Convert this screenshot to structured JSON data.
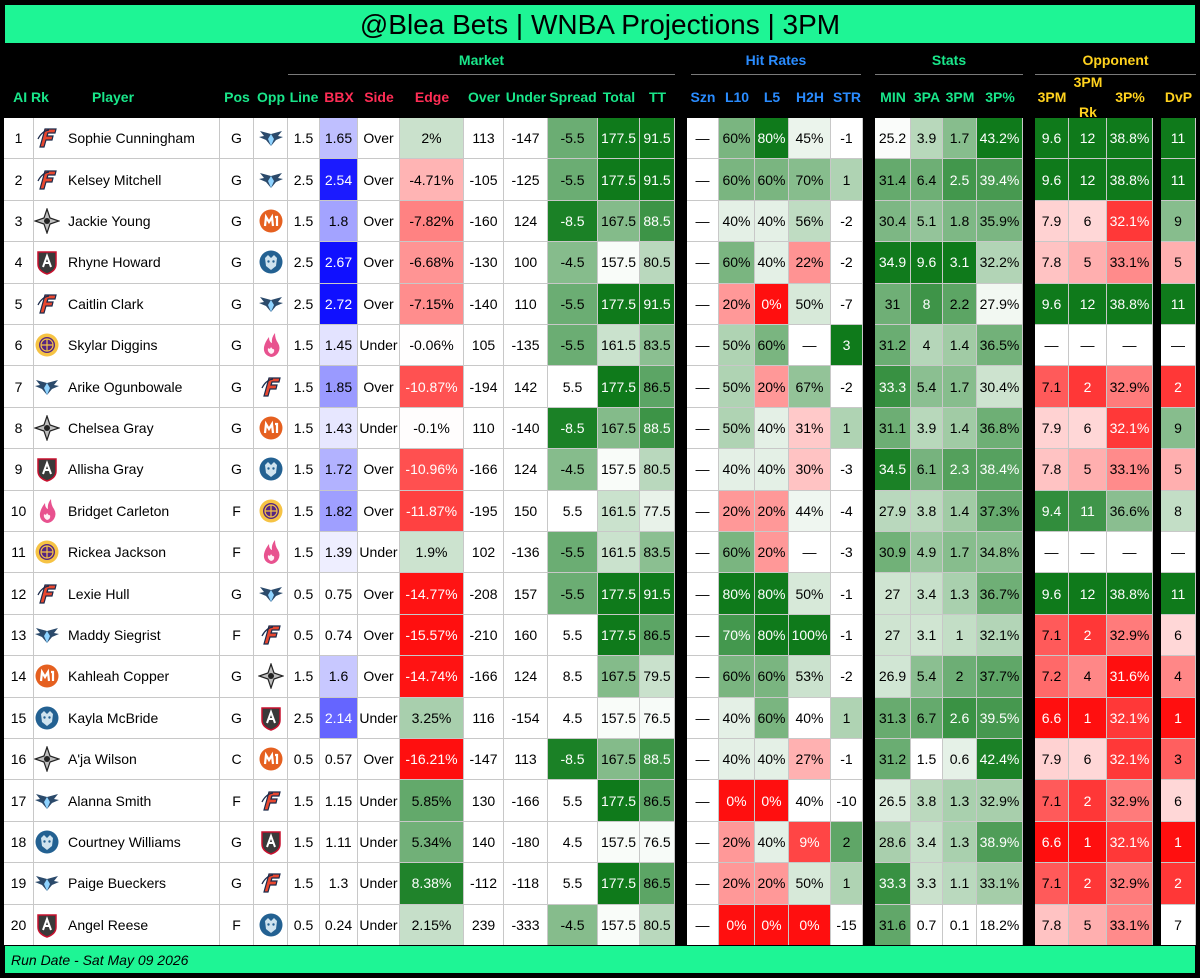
{
  "title": "@Blea Bets | WNBA Projections | 3PM",
  "footer": "Run Date - Sat May 09 2026",
  "groups": {
    "market": "Market",
    "hit_rates": "Hit Rates",
    "stats": "Stats",
    "opponent": "Opponent"
  },
  "headers": {
    "rk": "AI Rk",
    "player": "Player",
    "pos": "Pos",
    "opp": "Opp",
    "line": "Line",
    "bbx": "BBX",
    "side": "Side",
    "edge": "Edge",
    "over": "Over",
    "under": "Under",
    "spread": "Spread",
    "total": "Total",
    "tt": "TT",
    "szn": "Szn",
    "l10": "L10",
    "l5": "L5",
    "h2h": "H2H",
    "str": "STR",
    "min": "MIN",
    "3pa": "3PA",
    "3pm": "3PM",
    "3pct": "3P%",
    "o3pm": "3PM",
    "o3pmrk_top": "3PM",
    "o3pmrk_bottom": "Rk",
    "o3pct": "3P%",
    "dvp": "DvP"
  },
  "colors": {
    "fever": "#e8472f",
    "wings": "#2b4a6b",
    "aces": "#222222",
    "dream": "#c8102e",
    "valkyries": "#6f4a9e",
    "mercury": "#e56020",
    "lynx": "#236192",
    "sparks": "#552583",
    "fire": "#e8528f",
    "sky": "#418fde"
  },
  "rows": [
    {
      "rk": "1",
      "player": "Sophie Cunningham",
      "pos": "G",
      "team_icon": "fever-icon",
      "opp_icon": "wings-icon",
      "line": "1.5",
      "bbx": "1.65",
      "side": "Over",
      "edge": "2%",
      "over": "113",
      "under": "-147",
      "spread": "-5.5",
      "total": "177.5",
      "tt": "91.5",
      "szn": "—",
      "l10": "60%",
      "l5": "80%",
      "h2h": "45%",
      "str": "-1",
      "min": "25.2",
      "3pa": "3.9",
      "3pm": "1.7",
      "3pct": "43.2%",
      "o3pm": "9.6",
      "o3rk": "12",
      "o3pct": "38.8%",
      "dvp": "11"
    },
    {
      "rk": "2",
      "player": "Kelsey Mitchell",
      "pos": "G",
      "team_icon": "fever-icon",
      "opp_icon": "wings-icon",
      "line": "2.5",
      "bbx": "2.54",
      "side": "Over",
      "edge": "-4.71%",
      "over": "-105",
      "under": "-125",
      "spread": "-5.5",
      "total": "177.5",
      "tt": "91.5",
      "szn": "—",
      "l10": "60%",
      "l5": "60%",
      "h2h": "70%",
      "str": "1",
      "min": "31.4",
      "3pa": "6.4",
      "3pm": "2.5",
      "3pct": "39.4%",
      "o3pm": "9.6",
      "o3rk": "12",
      "o3pct": "38.8%",
      "dvp": "11"
    },
    {
      "rk": "3",
      "player": "Jackie Young",
      "pos": "G",
      "team_icon": "aces-icon",
      "opp_icon": "mercury-icon",
      "line": "1.5",
      "bbx": "1.8",
      "side": "Over",
      "edge": "-7.82%",
      "over": "-160",
      "under": "124",
      "spread": "-8.5",
      "total": "167.5",
      "tt": "88.5",
      "szn": "—",
      "l10": "40%",
      "l5": "40%",
      "h2h": "56%",
      "str": "-2",
      "min": "30.4",
      "3pa": "5.1",
      "3pm": "1.8",
      "3pct": "35.9%",
      "o3pm": "7.9",
      "o3rk": "6",
      "o3pct": "32.1%",
      "dvp": "9"
    },
    {
      "rk": "4",
      "player": "Rhyne Howard",
      "pos": "G",
      "team_icon": "dream-icon",
      "opp_icon": "lynx-icon",
      "line": "2.5",
      "bbx": "2.67",
      "side": "Over",
      "edge": "-6.68%",
      "over": "-130",
      "under": "100",
      "spread": "-4.5",
      "total": "157.5",
      "tt": "80.5",
      "szn": "—",
      "l10": "60%",
      "l5": "40%",
      "h2h": "22%",
      "str": "-2",
      "min": "34.9",
      "3pa": "9.6",
      "3pm": "3.1",
      "3pct": "32.2%",
      "o3pm": "7.8",
      "o3rk": "5",
      "o3pct": "33.1%",
      "dvp": "5"
    },
    {
      "rk": "5",
      "player": "Caitlin Clark",
      "pos": "G",
      "team_icon": "fever-icon",
      "opp_icon": "wings-icon",
      "line": "2.5",
      "bbx": "2.72",
      "side": "Over",
      "edge": "-7.15%",
      "over": "-140",
      "under": "110",
      "spread": "-5.5",
      "total": "177.5",
      "tt": "91.5",
      "szn": "—",
      "l10": "20%",
      "l5": "0%",
      "h2h": "50%",
      "str": "-7",
      "min": "31",
      "3pa": "8",
      "3pm": "2.2",
      "3pct": "27.9%",
      "o3pm": "9.6",
      "o3rk": "12",
      "o3pct": "38.8%",
      "dvp": "11"
    },
    {
      "rk": "6",
      "player": "Skylar Diggins",
      "pos": "G",
      "team_icon": "sparks-icon",
      "opp_icon": "fire-icon",
      "line": "1.5",
      "bbx": "1.45",
      "side": "Under",
      "edge": "-0.06%",
      "over": "105",
      "under": "-135",
      "spread": "-5.5",
      "total": "161.5",
      "tt": "83.5",
      "szn": "—",
      "l10": "50%",
      "l5": "60%",
      "h2h": "—",
      "str": "3",
      "min": "31.2",
      "3pa": "4",
      "3pm": "1.4",
      "3pct": "36.5%",
      "o3pm": "—",
      "o3rk": "—",
      "o3pct": "—",
      "dvp": "—"
    },
    {
      "rk": "7",
      "player": "Arike Ogunbowale",
      "pos": "G",
      "team_icon": "wings-icon",
      "opp_icon": "fever-icon",
      "line": "1.5",
      "bbx": "1.85",
      "side": "Over",
      "edge": "-10.87%",
      "over": "-194",
      "under": "142",
      "spread": "5.5",
      "total": "177.5",
      "tt": "86.5",
      "szn": "—",
      "l10": "50%",
      "l5": "20%",
      "h2h": "67%",
      "str": "-2",
      "min": "33.3",
      "3pa": "5.4",
      "3pm": "1.7",
      "3pct": "30.4%",
      "o3pm": "7.1",
      "o3rk": "2",
      "o3pct": "32.9%",
      "dvp": "2"
    },
    {
      "rk": "8",
      "player": "Chelsea Gray",
      "pos": "G",
      "team_icon": "aces-icon",
      "opp_icon": "mercury-icon",
      "line": "1.5",
      "bbx": "1.43",
      "side": "Under",
      "edge": "-0.1%",
      "over": "110",
      "under": "-140",
      "spread": "-8.5",
      "total": "167.5",
      "tt": "88.5",
      "szn": "—",
      "l10": "50%",
      "l5": "40%",
      "h2h": "31%",
      "str": "1",
      "min": "31.1",
      "3pa": "3.9",
      "3pm": "1.4",
      "3pct": "36.8%",
      "o3pm": "7.9",
      "o3rk": "6",
      "o3pct": "32.1%",
      "dvp": "9"
    },
    {
      "rk": "9",
      "player": "Allisha Gray",
      "pos": "G",
      "team_icon": "dream-icon",
      "opp_icon": "lynx-icon",
      "line": "1.5",
      "bbx": "1.72",
      "side": "Over",
      "edge": "-10.96%",
      "over": "-166",
      "under": "124",
      "spread": "-4.5",
      "total": "157.5",
      "tt": "80.5",
      "szn": "—",
      "l10": "40%",
      "l5": "40%",
      "h2h": "30%",
      "str": "-3",
      "min": "34.5",
      "3pa": "6.1",
      "3pm": "2.3",
      "3pct": "38.4%",
      "o3pm": "7.8",
      "o3rk": "5",
      "o3pct": "33.1%",
      "dvp": "5"
    },
    {
      "rk": "10",
      "player": "Bridget Carleton",
      "pos": "F",
      "team_icon": "fire-icon",
      "opp_icon": "sparks-icon",
      "line": "1.5",
      "bbx": "1.82",
      "side": "Over",
      "edge": "-11.87%",
      "over": "-195",
      "under": "150",
      "spread": "5.5",
      "total": "161.5",
      "tt": "77.5",
      "szn": "—",
      "l10": "20%",
      "l5": "20%",
      "h2h": "44%",
      "str": "-4",
      "min": "27.9",
      "3pa": "3.8",
      "3pm": "1.4",
      "3pct": "37.3%",
      "o3pm": "9.4",
      "o3rk": "11",
      "o3pct": "36.6%",
      "dvp": "8"
    },
    {
      "rk": "11",
      "player": "Rickea Jackson",
      "pos": "F",
      "team_icon": "sparks-icon",
      "opp_icon": "fire-icon",
      "line": "1.5",
      "bbx": "1.39",
      "side": "Under",
      "edge": "1.9%",
      "over": "102",
      "under": "-136",
      "spread": "-5.5",
      "total": "161.5",
      "tt": "83.5",
      "szn": "—",
      "l10": "60%",
      "l5": "20%",
      "h2h": "—",
      "str": "-3",
      "min": "30.9",
      "3pa": "4.9",
      "3pm": "1.7",
      "3pct": "34.8%",
      "o3pm": "—",
      "o3rk": "—",
      "o3pct": "—",
      "dvp": "—"
    },
    {
      "rk": "12",
      "player": "Lexie Hull",
      "pos": "G",
      "team_icon": "fever-icon",
      "opp_icon": "wings-icon",
      "line": "0.5",
      "bbx": "0.75",
      "side": "Over",
      "edge": "-14.77%",
      "over": "-208",
      "under": "157",
      "spread": "-5.5",
      "total": "177.5",
      "tt": "91.5",
      "szn": "—",
      "l10": "80%",
      "l5": "80%",
      "h2h": "50%",
      "str": "-1",
      "min": "27",
      "3pa": "3.4",
      "3pm": "1.3",
      "3pct": "36.7%",
      "o3pm": "9.6",
      "o3rk": "12",
      "o3pct": "38.8%",
      "dvp": "11"
    },
    {
      "rk": "13",
      "player": "Maddy Siegrist",
      "pos": "F",
      "team_icon": "wings-icon",
      "opp_icon": "fever-icon",
      "line": "0.5",
      "bbx": "0.74",
      "side": "Over",
      "edge": "-15.57%",
      "over": "-210",
      "under": "160",
      "spread": "5.5",
      "total": "177.5",
      "tt": "86.5",
      "szn": "—",
      "l10": "70%",
      "l5": "80%",
      "h2h": "100%",
      "str": "-1",
      "min": "27",
      "3pa": "3.1",
      "3pm": "1",
      "3pct": "32.1%",
      "o3pm": "7.1",
      "o3rk": "2",
      "o3pct": "32.9%",
      "dvp": "6"
    },
    {
      "rk": "14",
      "player": "Kahleah Copper",
      "pos": "G",
      "team_icon": "mercury-icon",
      "opp_icon": "aces-icon",
      "line": "1.5",
      "bbx": "1.6",
      "side": "Over",
      "edge": "-14.74%",
      "over": "-166",
      "under": "124",
      "spread": "8.5",
      "total": "167.5",
      "tt": "79.5",
      "szn": "—",
      "l10": "60%",
      "l5": "60%",
      "h2h": "53%",
      "str": "-2",
      "min": "26.9",
      "3pa": "5.4",
      "3pm": "2",
      "3pct": "37.7%",
      "o3pm": "7.2",
      "o3rk": "4",
      "o3pct": "31.6%",
      "dvp": "4"
    },
    {
      "rk": "15",
      "player": "Kayla McBride",
      "pos": "G",
      "team_icon": "lynx-icon",
      "opp_icon": "dream-icon",
      "line": "2.5",
      "bbx": "2.14",
      "side": "Under",
      "edge": "3.25%",
      "over": "116",
      "under": "-154",
      "spread": "4.5",
      "total": "157.5",
      "tt": "76.5",
      "szn": "—",
      "l10": "40%",
      "l5": "60%",
      "h2h": "40%",
      "str": "1",
      "min": "31.3",
      "3pa": "6.7",
      "3pm": "2.6",
      "3pct": "39.5%",
      "o3pm": "6.6",
      "o3rk": "1",
      "o3pct": "32.1%",
      "dvp": "1"
    },
    {
      "rk": "16",
      "player": "A'ja Wilson",
      "pos": "C",
      "team_icon": "aces-icon",
      "opp_icon": "mercury-icon",
      "line": "0.5",
      "bbx": "0.57",
      "side": "Over",
      "edge": "-16.21%",
      "over": "-147",
      "under": "113",
      "spread": "-8.5",
      "total": "167.5",
      "tt": "88.5",
      "szn": "—",
      "l10": "40%",
      "l5": "40%",
      "h2h": "27%",
      "str": "-1",
      "min": "31.2",
      "3pa": "1.5",
      "3pm": "0.6",
      "3pct": "42.4%",
      "o3pm": "7.9",
      "o3rk": "6",
      "o3pct": "32.1%",
      "dvp": "3"
    },
    {
      "rk": "17",
      "player": "Alanna Smith",
      "pos": "F",
      "team_icon": "wings-icon",
      "opp_icon": "fever-icon",
      "line": "1.5",
      "bbx": "1.15",
      "side": "Under",
      "edge": "5.85%",
      "over": "130",
      "under": "-166",
      "spread": "5.5",
      "total": "177.5",
      "tt": "86.5",
      "szn": "—",
      "l10": "0%",
      "l5": "0%",
      "h2h": "40%",
      "str": "-10",
      "min": "26.5",
      "3pa": "3.8",
      "3pm": "1.3",
      "3pct": "32.9%",
      "o3pm": "7.1",
      "o3rk": "2",
      "o3pct": "32.9%",
      "dvp": "6"
    },
    {
      "rk": "18",
      "player": "Courtney Williams",
      "pos": "G",
      "team_icon": "lynx-icon",
      "opp_icon": "dream-icon",
      "line": "1.5",
      "bbx": "1.11",
      "side": "Under",
      "edge": "5.34%",
      "over": "140",
      "under": "-180",
      "spread": "4.5",
      "total": "157.5",
      "tt": "76.5",
      "szn": "—",
      "l10": "20%",
      "l5": "40%",
      "h2h": "9%",
      "str": "2",
      "min": "28.6",
      "3pa": "3.4",
      "3pm": "1.3",
      "3pct": "38.9%",
      "o3pm": "6.6",
      "o3rk": "1",
      "o3pct": "32.1%",
      "dvp": "1"
    },
    {
      "rk": "19",
      "player": "Paige Bueckers",
      "pos": "G",
      "team_icon": "wings-icon",
      "opp_icon": "fever-icon",
      "line": "1.5",
      "bbx": "1.3",
      "side": "Under",
      "edge": "8.38%",
      "over": "-112",
      "under": "-118",
      "spread": "5.5",
      "total": "177.5",
      "tt": "86.5",
      "szn": "—",
      "l10": "20%",
      "l5": "20%",
      "h2h": "50%",
      "str": "1",
      "min": "33.3",
      "3pa": "3.3",
      "3pm": "1.1",
      "3pct": "33.1%",
      "o3pm": "7.1",
      "o3rk": "2",
      "o3pct": "32.9%",
      "dvp": "2"
    },
    {
      "rk": "20",
      "player": "Angel Reese",
      "pos": "F",
      "team_icon": "dream-icon",
      "opp_icon": "lynx-icon",
      "line": "0.5",
      "bbx": "0.24",
      "side": "Under",
      "edge": "2.15%",
      "over": "239",
      "under": "-333",
      "spread": "-4.5",
      "total": "157.5",
      "tt": "80.5",
      "szn": "—",
      "l10": "0%",
      "l5": "0%",
      "h2h": "0%",
      "str": "-15",
      "min": "31.6",
      "3pa": "0.7",
      "3pm": "0.1",
      "3pct": "18.2%",
      "o3pm": "7.8",
      "o3rk": "5",
      "o3pct": "33.1%",
      "dvp": "7"
    }
  ]
}
